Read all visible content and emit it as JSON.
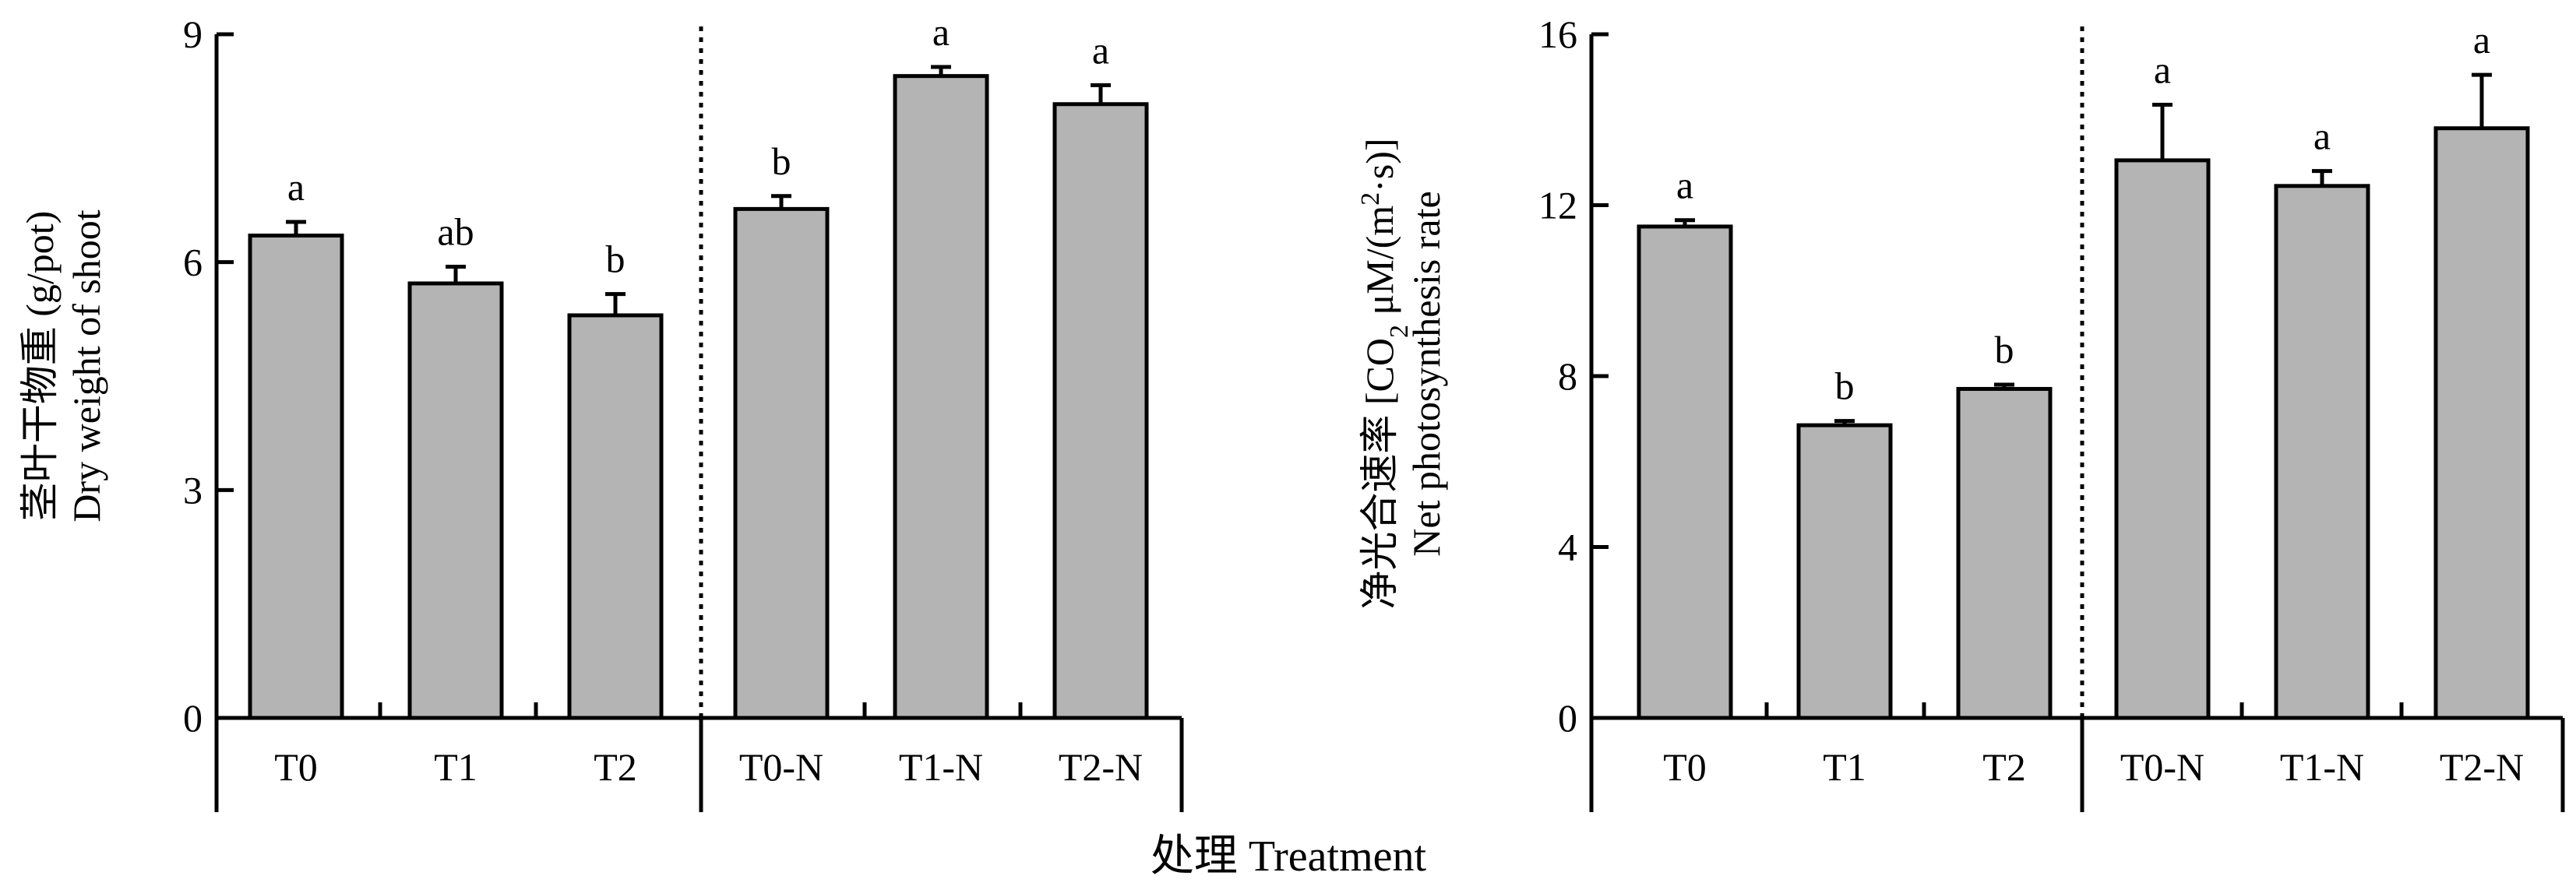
{
  "x_axis_title": "处理 Treatment",
  "chart_data": [
    {
      "type": "bar",
      "categories": [
        "T0",
        "T1",
        "T2",
        "T0-N",
        "T1-N",
        "T2-N"
      ],
      "values": [
        6.35,
        5.72,
        5.3,
        6.7,
        8.45,
        8.08
      ],
      "errors": [
        0.18,
        0.22,
        0.28,
        0.17,
        0.12,
        0.25
      ],
      "significance": [
        "a",
        "ab",
        "b",
        "b",
        "a",
        "a"
      ],
      "ylabel_cn": "茎叶干物重 (g/pot)",
      "ylabel_en": "Dry weight of shoot",
      "ylim": [
        0,
        9
      ],
      "yticks": [
        "0",
        "3",
        "6",
        "9"
      ],
      "group_separator_after": 3,
      "grid": false
    },
    {
      "type": "bar",
      "categories": [
        "T0",
        "T1",
        "T2",
        "T0-N",
        "T1-N",
        "T2-N"
      ],
      "values": [
        11.5,
        6.85,
        7.7,
        13.05,
        12.45,
        13.8
      ],
      "errors": [
        0.15,
        0.1,
        0.1,
        1.3,
        0.35,
        1.25
      ],
      "significance": [
        "a",
        "b",
        "b",
        "a",
        "a",
        "a"
      ],
      "ylabel_cn": "净光合速率 [CO",
      "ylabel_sub": "2",
      "ylabel_cn_rest": " μM/(m",
      "ylabel_sup": "2",
      "ylabel_cn_end": "·s)]",
      "ylabel_en": "Net photosynthesis rate",
      "ylim": [
        0,
        16
      ],
      "yticks": [
        "0",
        "4",
        "8",
        "12",
        "16"
      ],
      "group_separator_after": 3,
      "grid": false
    }
  ]
}
